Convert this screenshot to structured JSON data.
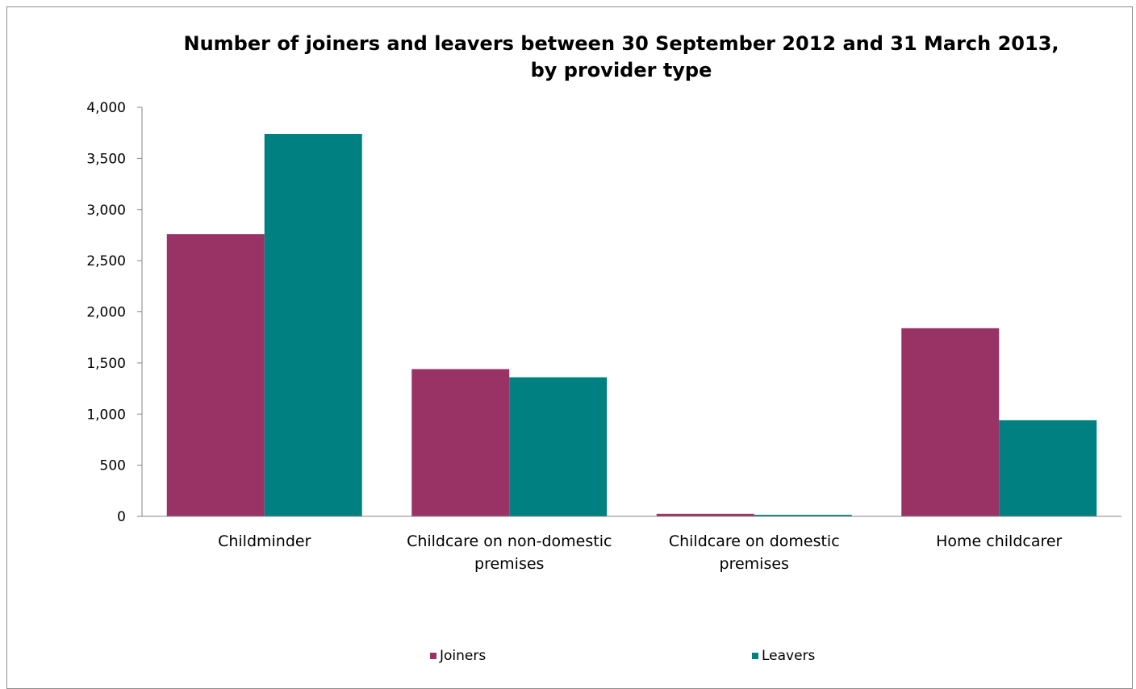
{
  "chart_data": {
    "type": "bar",
    "title_lines": [
      "Number of joiners and leavers between 30 September 2012 and 31 March 2013,",
      "by provider type"
    ],
    "categories": [
      [
        "Childminder"
      ],
      [
        "Childcare on non-domestic",
        "premises"
      ],
      [
        "Childcare on domestic",
        "premises"
      ],
      [
        "Home childcarer"
      ]
    ],
    "series": [
      {
        "name": "Joiners",
        "color": "#993366",
        "values": [
          2760,
          1440,
          25,
          1840
        ]
      },
      {
        "name": "Leavers",
        "color": "#008080",
        "values": [
          3740,
          1360,
          15,
          940
        ]
      }
    ],
    "ylim": [
      0,
      4000
    ],
    "yticks": [
      0,
      500,
      1000,
      1500,
      2000,
      2500,
      3000,
      3500,
      4000
    ],
    "ytick_labels": [
      "0",
      "500",
      "1,000",
      "1,500",
      "2,000",
      "2,500",
      "3,000",
      "3,500",
      "4,000"
    ],
    "xlabel": "",
    "ylabel": "",
    "grid": false,
    "legend_position": "bottom"
  }
}
